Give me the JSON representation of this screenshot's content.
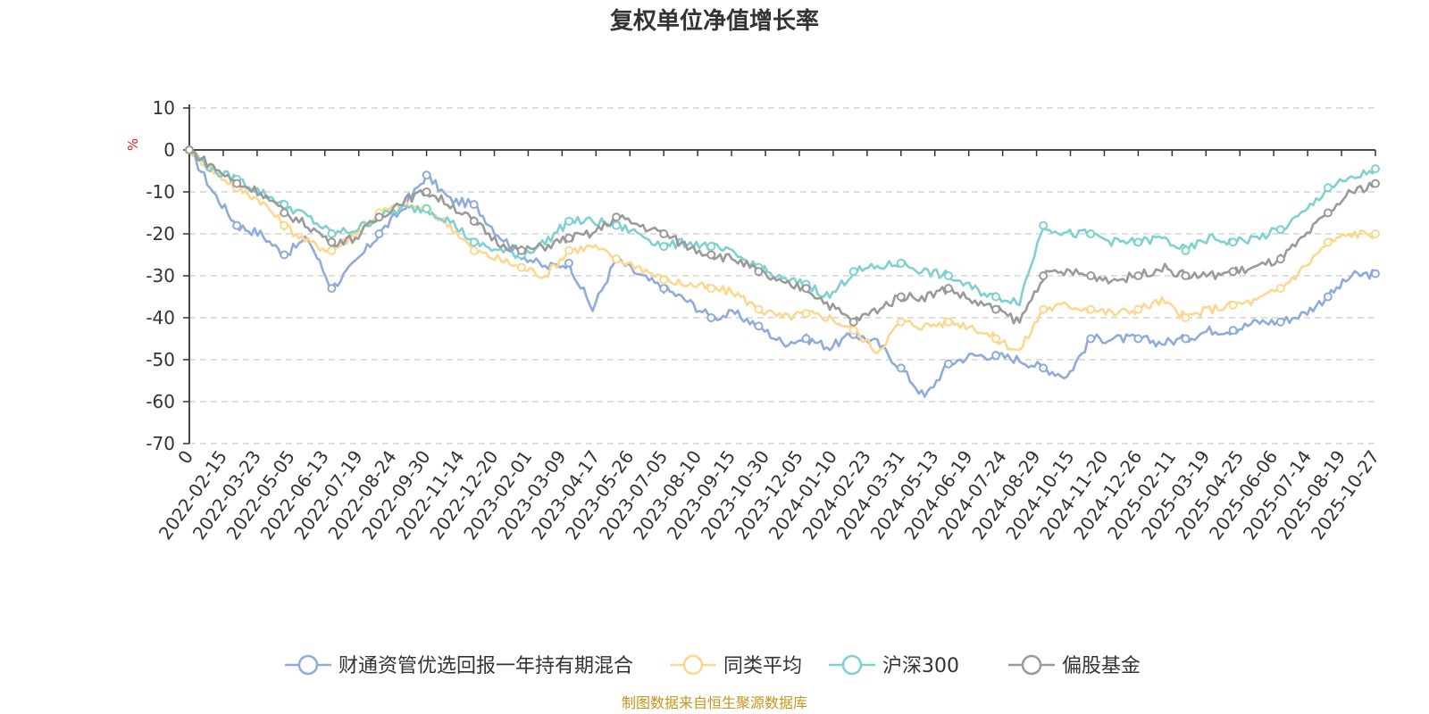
{
  "chart_data": {
    "type": "line",
    "title": "复权单位净值增长率",
    "ylabel": "%",
    "ylim": [
      -70,
      10
    ],
    "yticks": [
      "10",
      "0",
      "-10",
      "-20",
      "-30",
      "-40",
      "-50",
      "-60",
      "-70"
    ],
    "grid": true,
    "legend_position": "bottom",
    "source": "制图数据来自恒生聚源数据库",
    "x_ticks": [
      "0",
      "2022-02-15",
      "2022-03-23",
      "2022-05-05",
      "2022-06-13",
      "2022-07-19",
      "2022-08-24",
      "2022-09-30",
      "2022-11-14",
      "2022-12-20",
      "2023-02-01",
      "2023-03-09",
      "2023-04-17",
      "2023-05-26",
      "2023-07-05",
      "2023-08-10",
      "2023-09-15",
      "2023-10-30",
      "2023-12-05",
      "2024-01-10",
      "2024-02-23",
      "2024-03-31",
      "2024-05-13",
      "2024-06-19",
      "2024-07-24",
      "2024-08-29",
      "2024-10-15",
      "2024-11-20",
      "2024-12-26",
      "2025-02-11",
      "2025-03-19",
      "2025-04-25",
      "2025-06-06",
      "2025-07-14",
      "2025-08-19",
      "2025-10-27"
    ],
    "series": [
      {
        "name": "财通资管优选回报一年持有期混合",
        "color": "#8fabdb",
        "values": [
          0,
          -10,
          -18,
          -20,
          -25,
          -21,
          -33,
          -27,
          -20,
          -14,
          -6,
          -12,
          -13,
          -20,
          -25,
          -28,
          -27,
          -38,
          -26,
          -30,
          -33,
          -36,
          -40,
          -39,
          -42,
          -46,
          -45,
          -47,
          -44,
          -46,
          -52,
          -59,
          -51,
          -49,
          -49,
          -50,
          -52,
          -54,
          -45,
          -45,
          -45,
          -46,
          -45,
          -43,
          -43,
          -41,
          -41,
          -39,
          -35,
          -30,
          -29.5
        ]
      },
      {
        "name": "同类平均",
        "color": "#fdd78e",
        "values": [
          0,
          -5,
          -9,
          -12,
          -18,
          -22,
          -24,
          -20,
          -15,
          -13,
          -14,
          -18,
          -24,
          -26,
          -28,
          -30,
          -24,
          -23,
          -26,
          -28,
          -31,
          -32,
          -33,
          -34,
          -38,
          -40,
          -39,
          -40,
          -43,
          -48,
          -41,
          -42,
          -41,
          -42,
          -45,
          -48,
          -38,
          -37,
          -38,
          -39,
          -38,
          -36,
          -40,
          -38,
          -37,
          -36,
          -33,
          -28,
          -22,
          -20,
          -20
        ]
      },
      {
        "name": "沪深300",
        "color": "#7fd1d1",
        "values": [
          0,
          -5,
          -7,
          -10,
          -13,
          -16,
          -20,
          -19,
          -16,
          -14,
          -14,
          -17,
          -22,
          -24,
          -25,
          -22,
          -17,
          -17,
          -18,
          -20,
          -23,
          -22,
          -23,
          -25,
          -28,
          -31,
          -32,
          -35,
          -29,
          -28,
          -27,
          -29,
          -30,
          -33,
          -35,
          -36,
          -18,
          -20,
          -20,
          -22,
          -22,
          -21,
          -24,
          -21,
          -22,
          -21,
          -19,
          -15,
          -9,
          -7,
          -4.5
        ]
      },
      {
        "name": "偏股基金",
        "color": "#9a9a9a",
        "values": [
          0,
          -4,
          -8,
          -10,
          -15,
          -18,
          -22,
          -21,
          -16,
          -12,
          -10,
          -13,
          -17,
          -22,
          -24,
          -23,
          -21,
          -20,
          -16,
          -18,
          -20,
          -23,
          -25,
          -26,
          -29,
          -32,
          -33,
          -37,
          -41,
          -38,
          -35,
          -35,
          -33,
          -36,
          -38,
          -41,
          -30,
          -29,
          -30,
          -31,
          -30,
          -28,
          -30,
          -30,
          -29,
          -28,
          -26,
          -21,
          -15,
          -10,
          -8
        ]
      }
    ]
  }
}
